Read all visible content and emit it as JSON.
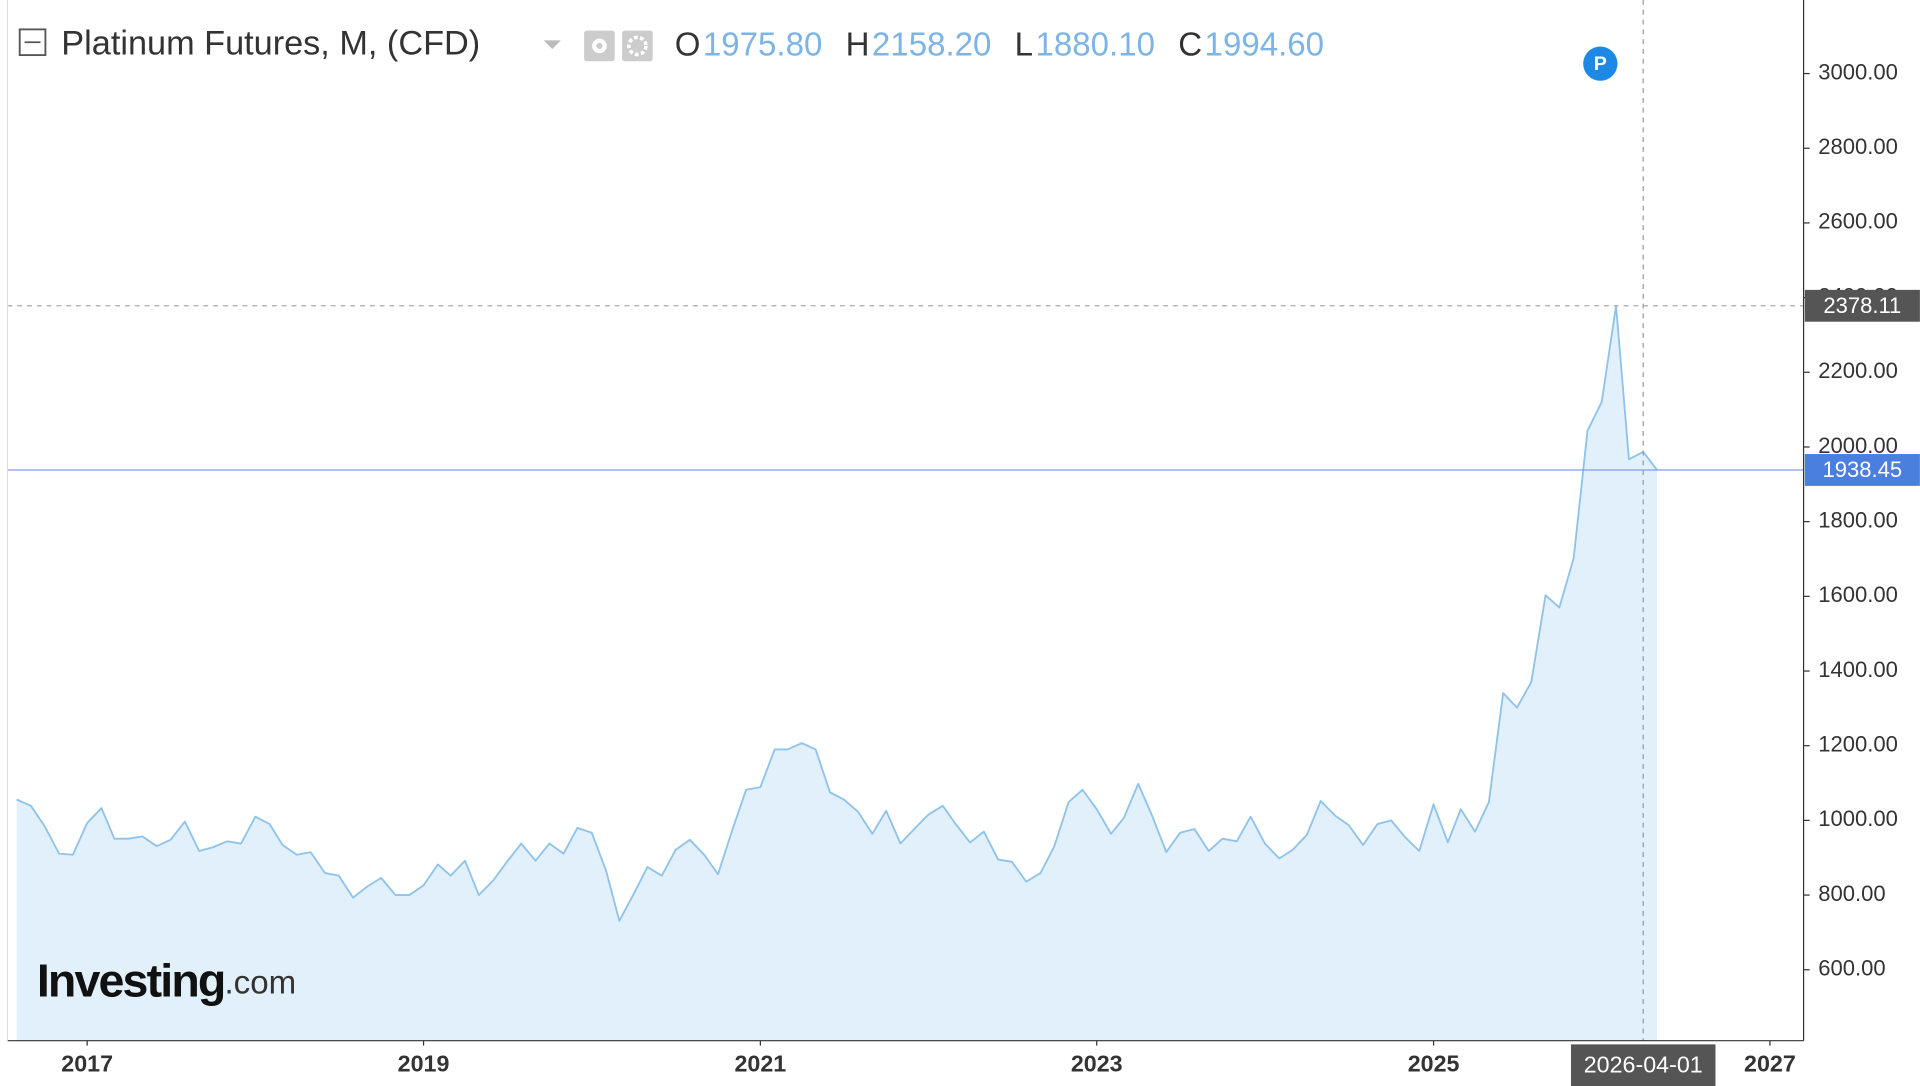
{
  "chart_data": {
    "type": "area",
    "title": "Platinum Futures, M, (CFD)",
    "ohlc": [
      {
        "key": "O",
        "value": "1975.80"
      },
      {
        "key": "H",
        "value": "2158.20"
      },
      {
        "key": "L",
        "value": "1880.10"
      },
      {
        "key": "C",
        "value": "1994.60"
      }
    ],
    "badge": "P",
    "watermark": {
      "brand": "Investing",
      "suffix": ".com"
    },
    "color": "#8fc3ea",
    "fill_color": "#e1f0fa",
    "x": [
      "2016-08-01",
      "2016-09-01",
      "2016-10-01",
      "2016-11-01",
      "2016-12-01",
      "2017-01-01",
      "2017-02-01",
      "2017-03-01",
      "2017-04-01",
      "2017-05-01",
      "2017-06-01",
      "2017-07-01",
      "2017-08-01",
      "2017-09-01",
      "2017-10-01",
      "2017-11-01",
      "2017-12-01",
      "2018-01-01",
      "2018-02-01",
      "2018-03-01",
      "2018-04-01",
      "2018-05-01",
      "2018-06-01",
      "2018-07-01",
      "2018-08-01",
      "2018-09-01",
      "2018-10-01",
      "2018-11-01",
      "2018-12-01",
      "2019-01-01",
      "2019-02-01",
      "2019-03-01",
      "2019-04-01",
      "2019-05-01",
      "2019-06-01",
      "2019-07-01",
      "2019-08-01",
      "2019-09-01",
      "2019-10-01",
      "2019-11-01",
      "2019-12-01",
      "2020-01-01",
      "2020-02-01",
      "2020-03-01",
      "2020-04-01",
      "2020-05-01",
      "2020-06-01",
      "2020-07-01",
      "2020-08-01",
      "2020-09-01",
      "2020-10-01",
      "2020-11-01",
      "2020-12-01",
      "2021-01-01",
      "2021-02-01",
      "2021-03-01",
      "2021-04-01",
      "2021-05-01",
      "2021-06-01",
      "2021-07-01",
      "2021-08-01",
      "2021-09-01",
      "2021-10-01",
      "2021-11-01",
      "2021-12-01",
      "2022-01-01",
      "2022-02-01",
      "2022-03-01",
      "2022-04-01",
      "2022-05-01",
      "2022-06-01",
      "2022-07-01",
      "2022-08-01",
      "2022-09-01",
      "2022-10-01",
      "2022-11-01",
      "2022-12-01",
      "2023-01-01",
      "2023-02-01",
      "2023-03-01",
      "2023-04-01",
      "2023-05-01",
      "2023-06-01",
      "2023-07-01",
      "2023-08-01",
      "2023-09-01",
      "2023-10-01",
      "2023-11-01",
      "2023-12-01",
      "2024-01-01",
      "2024-02-01",
      "2024-03-01",
      "2024-04-01",
      "2024-05-01",
      "2024-06-01",
      "2024-07-01",
      "2024-08-01",
      "2024-09-01",
      "2024-10-01",
      "2024-11-01",
      "2024-12-01",
      "2025-01-01",
      "2025-02-01",
      "2025-03-01",
      "2025-04-01",
      "2025-05-01",
      "2025-06-01",
      "2025-07-01",
      "2025-08-01",
      "2025-09-01",
      "2025-10-01",
      "2025-11-01",
      "2025-12-01",
      "2026-01-01",
      "2026-02-01",
      "2026-03-01",
      "2026-04-01",
      "2026-05-01"
    ],
    "values": [
      1056,
      1039,
      984,
      911,
      908,
      993,
      1033,
      951,
      951,
      957,
      931,
      948,
      997,
      918,
      928,
      944,
      938,
      1010,
      990,
      934,
      908,
      915,
      859,
      852,
      793,
      823,
      846,
      800,
      800,
      826,
      882,
      852,
      892,
      800,
      839,
      889,
      938,
      892,
      938,
      911,
      980,
      967,
      866,
      731,
      803,
      875,
      852,
      921,
      948,
      908,
      856,
      974,
      1082,
      1089,
      1190,
      1190,
      1207,
      1190,
      1075,
      1056,
      1023,
      964,
      1026,
      938,
      977,
      1016,
      1039,
      990,
      941,
      970,
      895,
      889,
      836,
      859,
      931,
      1049,
      1082,
      1030,
      964,
      1007,
      1098,
      1013,
      915,
      967,
      977,
      918,
      951,
      944,
      1010,
      938,
      898,
      921,
      961,
      1052,
      1013,
      987,
      934,
      990,
      1000,
      954,
      918,
      1043,
      941,
      1030,
      970,
      1049,
      1341,
      1302,
      1370,
      1603,
      1570,
      1702,
      2043,
      2121,
      2378.11,
      1967,
      1987,
      1938.45
    ],
    "xlim": [
      "2016-07-12",
      "2027-03-15"
    ],
    "xticks": [
      {
        "value": "2017-01-01",
        "label": "2017"
      },
      {
        "value": "2019-01-01",
        "label": "2019"
      },
      {
        "value": "2021-01-01",
        "label": "2021"
      },
      {
        "value": "2023-01-01",
        "label": "2023"
      },
      {
        "value": "2025-01-01",
        "label": "2025"
      },
      {
        "value": "2027-01-01",
        "label": "2027"
      }
    ],
    "ylim": [
      410,
      3197
    ],
    "yticks": [
      {
        "value": 600,
        "label": "600.00"
      },
      {
        "value": 800,
        "label": "800.00"
      },
      {
        "value": 1000,
        "label": "1000.00"
      },
      {
        "value": 1200,
        "label": "1200.00"
      },
      {
        "value": 1400,
        "label": "1400.00"
      },
      {
        "value": 1600,
        "label": "1600.00"
      },
      {
        "value": 1800,
        "label": "1800.00"
      },
      {
        "value": 2000,
        "label": "2000.00"
      },
      {
        "value": 2200,
        "label": "2200.00"
      },
      {
        "value": 2400,
        "label": "2400.00"
      },
      {
        "value": 2600,
        "label": "2600.00"
      },
      {
        "value": 2800,
        "label": "2800.00"
      },
      {
        "value": 3000,
        "label": "3000.00"
      }
    ],
    "price_lines": [
      {
        "value": 2378.11,
        "label": "2378.11",
        "color": "#555555",
        "dashed": true
      },
      {
        "value": 1938.45,
        "label": "1938.45",
        "color": "#4a7fe0",
        "dashed": false
      }
    ],
    "crosshair": "2026-04-01"
  }
}
